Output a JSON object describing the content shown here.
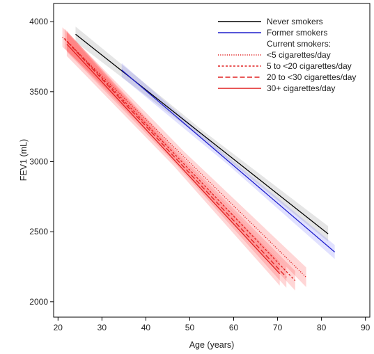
{
  "chart_data": {
    "type": "line",
    "xlabel": "Age (years)",
    "ylabel": "FEV1 (mL)",
    "xlim": [
      19,
      91
    ],
    "ylim": [
      1890,
      4130
    ],
    "xticks": [
      20,
      30,
      40,
      50,
      60,
      70,
      80,
      90
    ],
    "yticks": [
      2000,
      2500,
      3000,
      3500,
      4000
    ],
    "grid": false,
    "legend_position": "top-right",
    "legend_subheading": "Current smokers:",
    "series": [
      {
        "name": "Never smokers",
        "color": "#000000",
        "band_color": "#7f7f7f",
        "dash": "solid",
        "x": [
          24,
          81.5
        ],
        "y": [
          3910,
          2485
        ],
        "ci": 55
      },
      {
        "name": "Former smokers",
        "color": "#1f1fcc",
        "band_color": "#6a6aff",
        "dash": "solid",
        "x": [
          34.5,
          83
        ],
        "y": [
          3655,
          2355
        ],
        "ci": 50
      },
      {
        "name": "<5 cigarettes/day",
        "color": "#e02020",
        "band_color": "#ff3030",
        "dash": "dotted",
        "x": [
          21,
          76.5
        ],
        "y": [
          3890,
          2175
        ],
        "ci": 70
      },
      {
        "name": "5 to <20 cigarettes/day",
        "color": "#e02020",
        "band_color": "#ff3030",
        "dash": "short-dash",
        "x": [
          21.5,
          74
        ],
        "y": [
          3880,
          2150
        ],
        "ci": 70
      },
      {
        "name": "20 to <30 cigarettes/day",
        "color": "#e02020",
        "band_color": "#ff3030",
        "dash": "long-dash",
        "x": [
          22,
          72
        ],
        "y": [
          3860,
          2175
        ],
        "ci": 75
      },
      {
        "name": "30+ cigarettes/day",
        "color": "#e02020",
        "band_color": "#ff3030",
        "dash": "solid",
        "x": [
          22,
          70.5
        ],
        "y": [
          3840,
          2200
        ],
        "ci": 85
      }
    ]
  }
}
